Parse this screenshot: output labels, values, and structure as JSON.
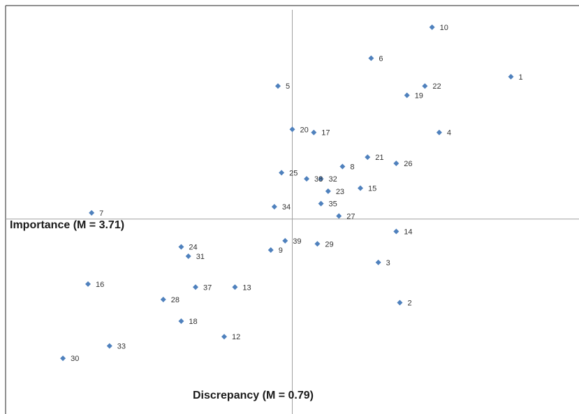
{
  "chart_data": {
    "type": "scatter",
    "title": "",
    "x_axis_label": "Importance (M = 3.71)",
    "y_axis_label": "Discrepancy (M = 0.79)",
    "grid": false,
    "legend": "none",
    "marker_color": "#4f81bd",
    "points": [
      {
        "label": "1",
        "x": 6.1,
        "y": 4.6
      },
      {
        "label": "2",
        "x": 3.0,
        "y": -2.7
      },
      {
        "label": "3",
        "x": 2.4,
        "y": -1.4
      },
      {
        "label": "4",
        "x": 4.1,
        "y": 2.8
      },
      {
        "label": "5",
        "x": -0.4,
        "y": 4.3
      },
      {
        "label": "6",
        "x": 2.2,
        "y": 5.2
      },
      {
        "label": "7",
        "x": -5.6,
        "y": 0.2
      },
      {
        "label": "8",
        "x": 1.4,
        "y": 1.7
      },
      {
        "label": "9",
        "x": -0.6,
        "y": -1.0
      },
      {
        "label": "10",
        "x": 3.9,
        "y": 6.2
      },
      {
        "label": "12",
        "x": -1.9,
        "y": -3.8
      },
      {
        "label": "13",
        "x": -1.6,
        "y": -2.2
      },
      {
        "label": "14",
        "x": 2.9,
        "y": -0.4
      },
      {
        "label": "15",
        "x": 1.9,
        "y": 1.0
      },
      {
        "label": "16",
        "x": -5.7,
        "y": -2.1
      },
      {
        "label": "17",
        "x": 0.6,
        "y": 2.8
      },
      {
        "label": "18",
        "x": -3.1,
        "y": -3.3
      },
      {
        "label": "19",
        "x": 3.2,
        "y": 4.0
      },
      {
        "label": "20",
        "x": 0.0,
        "y": 2.9
      },
      {
        "label": "21",
        "x": 2.1,
        "y": 2.0
      },
      {
        "label": "22",
        "x": 3.7,
        "y": 4.3
      },
      {
        "label": "23",
        "x": 1.0,
        "y": 0.9
      },
      {
        "label": "24",
        "x": -3.1,
        "y": -0.9
      },
      {
        "label": "25",
        "x": -0.3,
        "y": 1.5
      },
      {
        "label": "26",
        "x": 2.9,
        "y": 1.8
      },
      {
        "label": "27",
        "x": 1.3,
        "y": 0.1
      },
      {
        "label": "28",
        "x": -3.6,
        "y": -2.6
      },
      {
        "label": "29",
        "x": 0.7,
        "y": -0.8
      },
      {
        "label": "30",
        "x": -6.4,
        "y": -4.5
      },
      {
        "label": "31",
        "x": -2.9,
        "y": -1.2
      },
      {
        "label": "32",
        "x": 0.8,
        "y": 1.3
      },
      {
        "label": "33",
        "x": -5.1,
        "y": -4.1
      },
      {
        "label": "34",
        "x": -0.5,
        "y": 0.4
      },
      {
        "label": "35",
        "x": 0.8,
        "y": 0.5
      },
      {
        "label": "37",
        "x": -2.7,
        "y": -2.2
      },
      {
        "label": "38",
        "x": 0.4,
        "y": 1.3
      },
      {
        "label": "39",
        "x": -0.2,
        "y": -0.7
      }
    ],
    "xlim": [
      -8.0,
      8.0
    ],
    "ylim": [
      -6.3,
      6.9
    ]
  }
}
